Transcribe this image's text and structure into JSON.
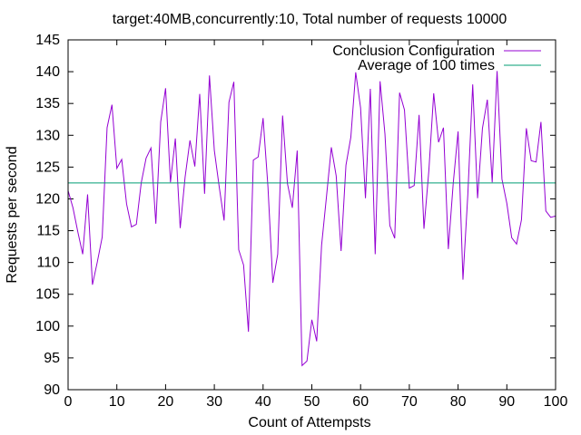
{
  "chart_data": {
    "type": "line",
    "title": "target:40MB,concurrently:10, Total number of requests 10000",
    "xlabel": "Count of Attempsts",
    "ylabel": "Requests per second",
    "xlim": [
      0,
      100
    ],
    "ylim": [
      90,
      145
    ],
    "xticks": [
      0,
      10,
      20,
      30,
      40,
      50,
      60,
      70,
      80,
      90,
      100
    ],
    "yticks": [
      90,
      95,
      100,
      105,
      110,
      115,
      120,
      125,
      130,
      135,
      140,
      145
    ],
    "grid": false,
    "legend_position": "top-right",
    "series": [
      {
        "name": "Conclusion Configuration",
        "color": "#9400d3",
        "x": [
          0,
          1,
          2,
          3,
          4,
          5,
          6,
          7,
          8,
          9,
          10,
          11,
          12,
          13,
          14,
          15,
          16,
          17,
          18,
          19,
          20,
          21,
          22,
          23,
          24,
          25,
          26,
          27,
          28,
          29,
          30,
          31,
          32,
          33,
          34,
          35,
          36,
          37,
          38,
          39,
          40,
          41,
          42,
          43,
          44,
          45,
          46,
          47,
          48,
          49,
          50,
          51,
          52,
          53,
          54,
          55,
          56,
          57,
          58,
          59,
          60,
          61,
          62,
          63,
          64,
          65,
          66,
          67,
          68,
          69,
          70,
          71,
          72,
          73,
          74,
          75,
          76,
          77,
          78,
          79,
          80,
          81,
          82,
          83,
          84,
          85,
          86,
          87,
          88,
          89,
          90,
          91,
          92,
          93,
          94,
          95,
          96,
          97,
          98,
          99,
          100
        ],
        "values": [
          121.3,
          118.6,
          114.8,
          111.3,
          120.7,
          106.5,
          110.1,
          114.0,
          131.2,
          134.8,
          124.8,
          126.2,
          119.2,
          115.6,
          116.0,
          122.5,
          126.4,
          128.0,
          116.1,
          132.1,
          137.4,
          122.6,
          129.5,
          115.4,
          123.4,
          129.2,
          125.1,
          136.5,
          120.8,
          139.4,
          127.6,
          121.9,
          116.6,
          135.2,
          138.4,
          112.0,
          109.6,
          99.1,
          126.1,
          126.6,
          132.7,
          121.9,
          106.8,
          111.3,
          133.1,
          122.4,
          118.6,
          127.6,
          93.8,
          94.5,
          101.0,
          97.6,
          112.7,
          120.3,
          128.1,
          123.6,
          111.8,
          125.3,
          129.7,
          139.9,
          134.3,
          120.1,
          137.3,
          111.3,
          138.5,
          130.2,
          115.8,
          113.8,
          136.7,
          134.0,
          121.7,
          122.1,
          133.2,
          115.3,
          124.4,
          136.6,
          128.9,
          131.2,
          112.1,
          122.4,
          130.6,
          107.3,
          120.7,
          138.0,
          120.1,
          131.1,
          135.6,
          122.6,
          140.1,
          123.1,
          119.3,
          113.9,
          112.9,
          116.7,
          131.1,
          126.0,
          125.8,
          132.1,
          118.1,
          117.1,
          117.3
        ]
      },
      {
        "name": "Average of 100 times",
        "color": "#009e73",
        "x": [
          0,
          100
        ],
        "values": [
          122.5,
          122.5
        ]
      }
    ]
  }
}
